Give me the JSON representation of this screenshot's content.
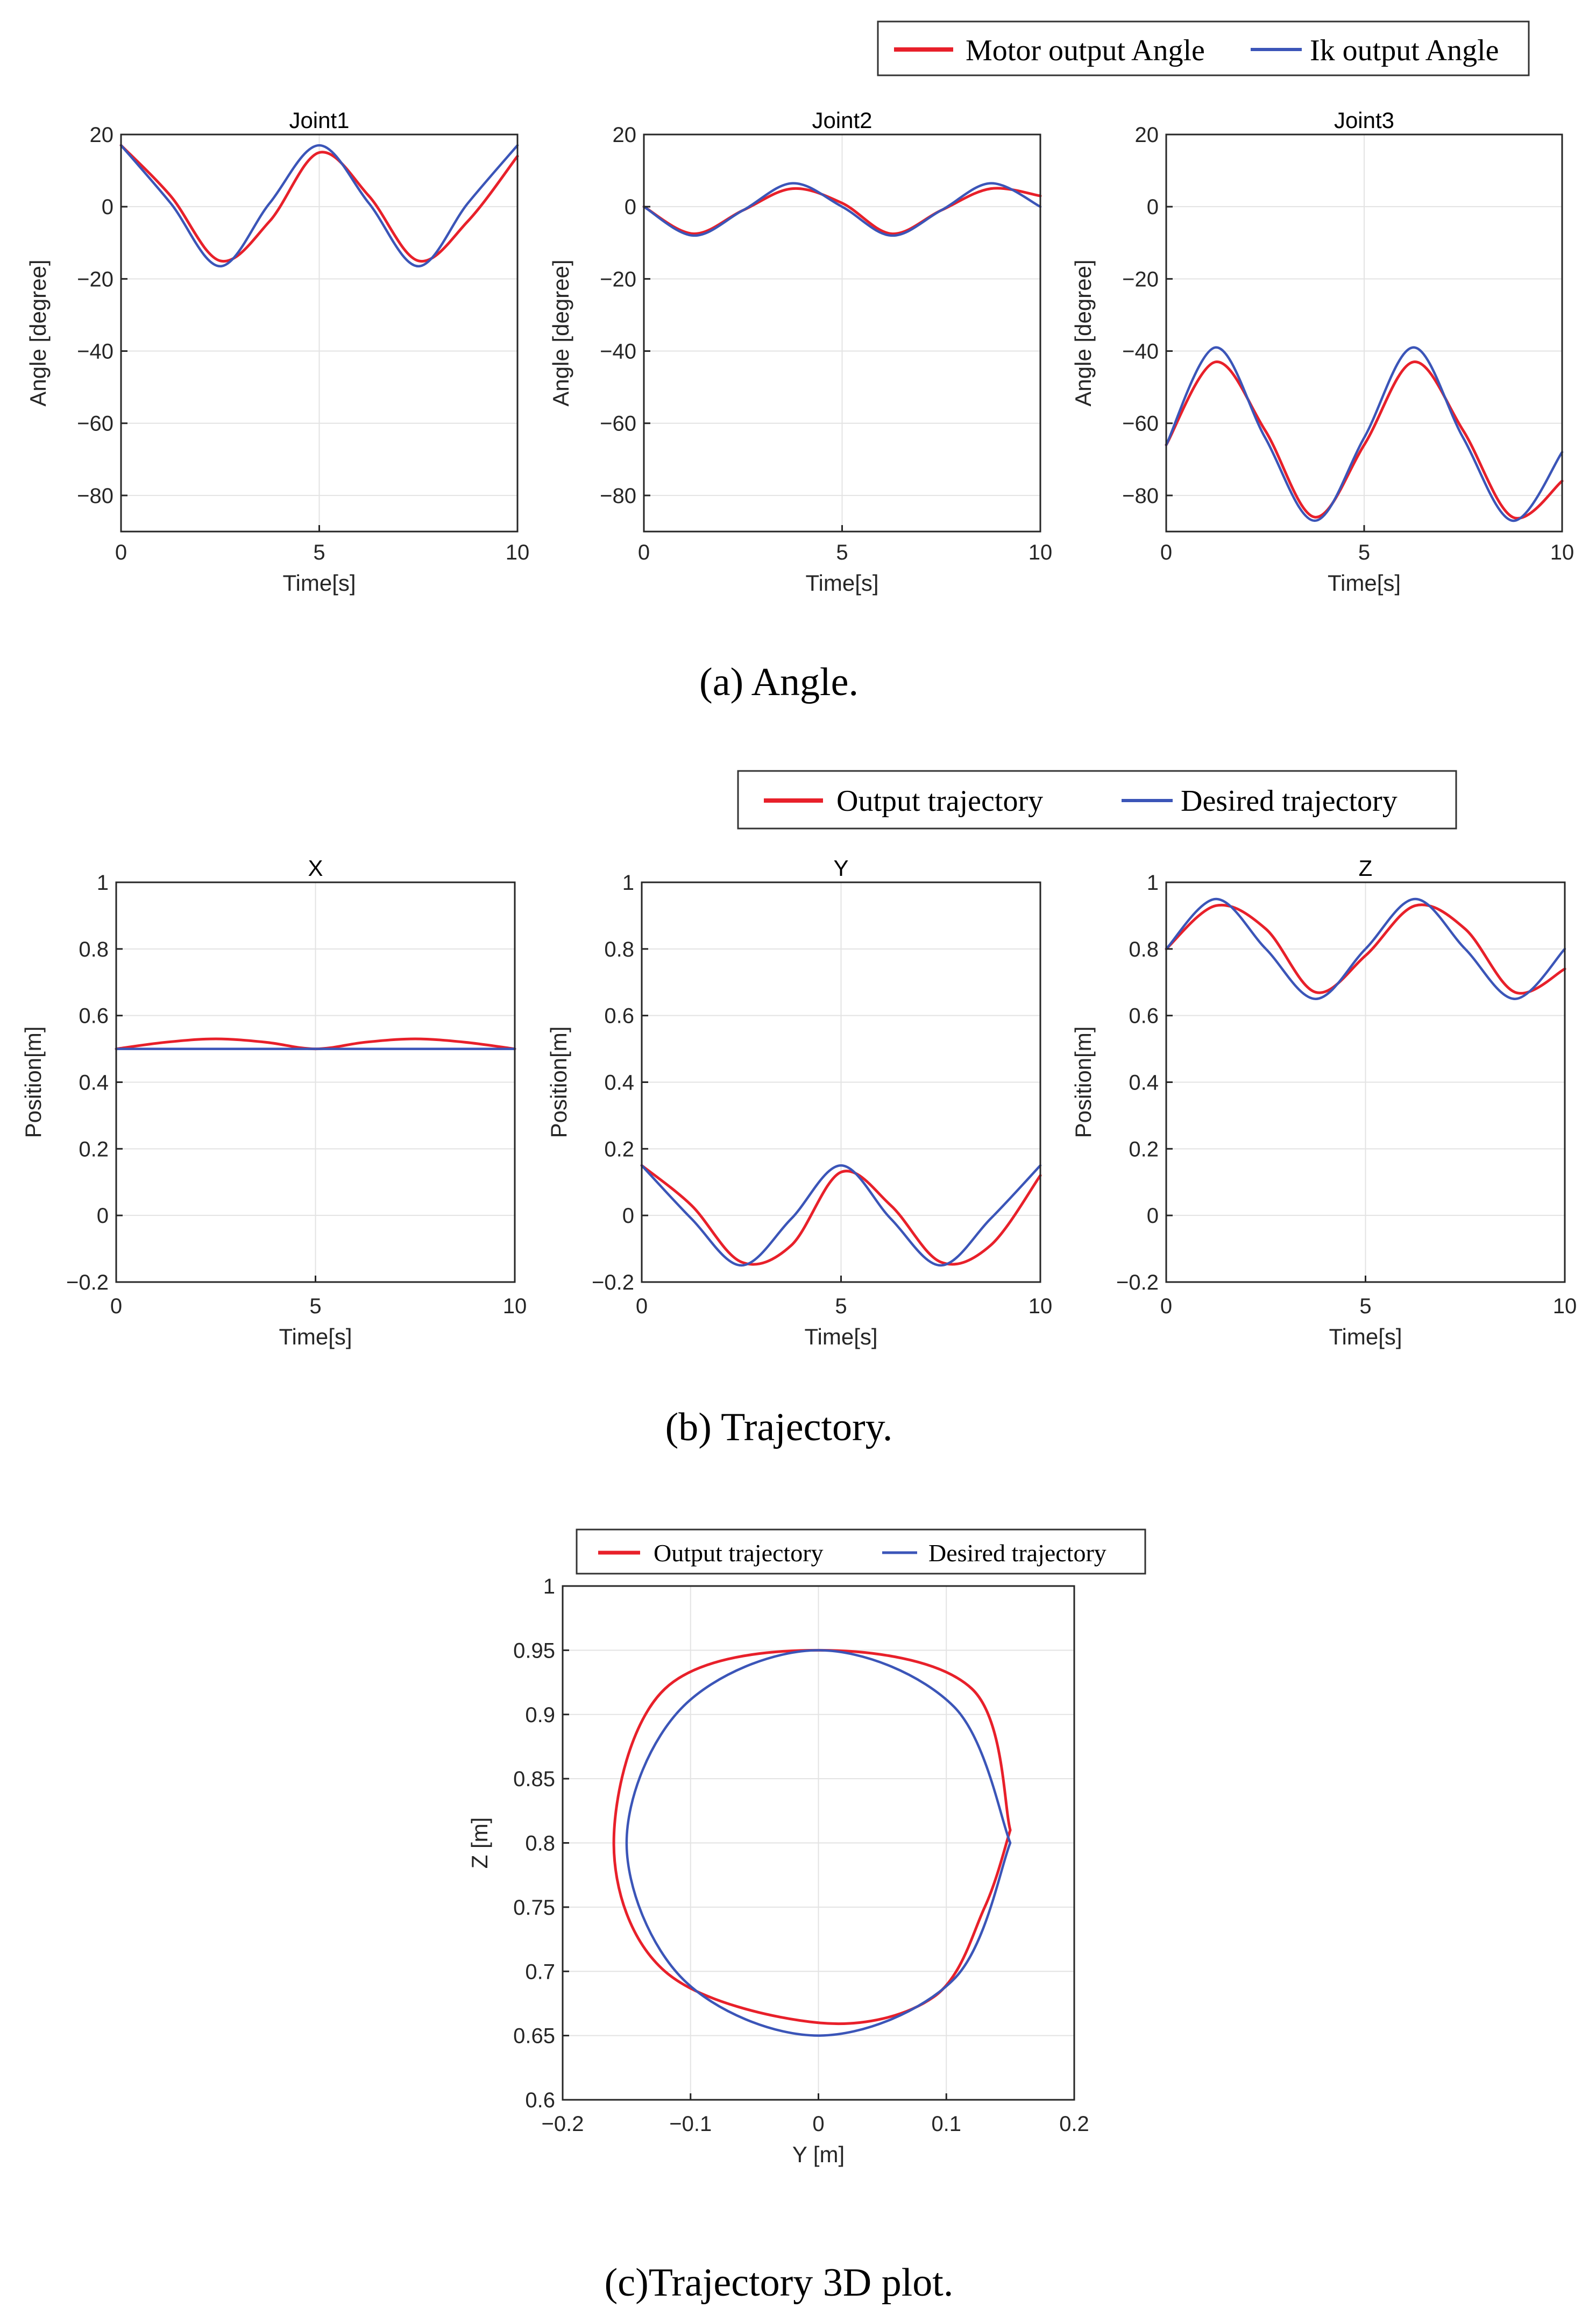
{
  "colors": {
    "output": "#e8202a",
    "desired": "#3b55b8",
    "grid": "#e3e3e3",
    "axis": "#262626"
  },
  "captions": {
    "a": "(a) Angle.",
    "b": "(b) Trajectory.",
    "c": "(c)Trajectory 3D plot."
  },
  "legends": {
    "a": {
      "red": "Motor output Angle",
      "blue": "Ik output Angle"
    },
    "b": {
      "red": "Output trajectory",
      "blue": "Desired trajectory"
    },
    "c": {
      "red": "Output trajectory",
      "blue": "Desired trajectory"
    }
  },
  "chart_data": [
    {
      "type": "line",
      "title": "Joint1",
      "xlabel": "Time[s]",
      "ylabel": "Angle [degree]",
      "xlim": [
        0,
        10
      ],
      "ylim": [
        -90,
        20
      ],
      "xticks": [
        0,
        5,
        10
      ],
      "yticks": [
        20,
        0,
        -20,
        -40,
        -60,
        -80
      ],
      "grid": true,
      "x": [
        0,
        1.25,
        2.5,
        3.75,
        5,
        6.25,
        7.5,
        8.75,
        10
      ],
      "series": [
        {
          "name": "Motor output Angle",
          "values": [
            17,
            3,
            -15,
            -4,
            15,
            3,
            -15,
            -4,
            14
          ]
        },
        {
          "name": "Ik output Angle",
          "values": [
            17,
            1,
            -16.5,
            1,
            17,
            1,
            -16.5,
            1,
            17
          ]
        }
      ]
    },
    {
      "type": "line",
      "title": "Joint2",
      "xlabel": "Time[s]",
      "ylabel": "Angle [degree]",
      "xlim": [
        0,
        10
      ],
      "ylim": [
        -90,
        20
      ],
      "xticks": [
        0,
        5,
        10
      ],
      "yticks": [
        20,
        0,
        -20,
        -40,
        -60,
        -80
      ],
      "grid": true,
      "x": [
        0,
        1.25,
        2.5,
        3.75,
        5,
        6.25,
        7.5,
        8.75,
        10
      ],
      "series": [
        {
          "name": "Motor output Angle",
          "values": [
            0,
            -7.5,
            -1,
            5,
            1,
            -7.5,
            -1,
            5,
            3
          ]
        },
        {
          "name": "Ik output Angle",
          "values": [
            0,
            -8,
            -1,
            6.5,
            0,
            -8,
            -1,
            6.5,
            0
          ]
        }
      ]
    },
    {
      "type": "line",
      "title": "Joint3",
      "xlabel": "Time[s]",
      "ylabel": "Angle [degree]",
      "xlim": [
        0,
        10
      ],
      "ylim": [
        -90,
        20
      ],
      "xticks": [
        0,
        5,
        10
      ],
      "yticks": [
        20,
        0,
        -20,
        -40,
        -60,
        -80
      ],
      "grid": true,
      "x": [
        0,
        1.25,
        2.5,
        3.75,
        5,
        6.25,
        7.5,
        8.75,
        10
      ],
      "series": [
        {
          "name": "Motor output Angle",
          "values": [
            -66,
            -43,
            -62,
            -86,
            -66,
            -43,
            -62,
            -86,
            -76
          ]
        },
        {
          "name": "Ik output Angle",
          "values": [
            -66,
            -39,
            -64,
            -87,
            -64,
            -39,
            -64,
            -87,
            -68
          ]
        }
      ]
    },
    {
      "type": "line",
      "title": "X",
      "xlabel": "Time[s]",
      "ylabel": "Position[m]",
      "xlim": [
        0,
        10
      ],
      "ylim": [
        -0.2,
        1
      ],
      "xticks": [
        0,
        5,
        10
      ],
      "yticks": [
        1,
        0.8,
        0.6,
        0.4,
        0.2,
        0,
        -0.2
      ],
      "grid": true,
      "x": [
        0,
        1.25,
        2.5,
        3.75,
        5,
        6.25,
        7.5,
        8.75,
        10
      ],
      "series": [
        {
          "name": "Output trajectory",
          "values": [
            0.5,
            0.52,
            0.53,
            0.52,
            0.5,
            0.52,
            0.53,
            0.52,
            0.5
          ]
        },
        {
          "name": "Desired trajectory",
          "values": [
            0.5,
            0.5,
            0.5,
            0.5,
            0.5,
            0.5,
            0.5,
            0.5,
            0.5
          ]
        }
      ]
    },
    {
      "type": "line",
      "title": "Y",
      "xlabel": "Time[s]",
      "ylabel": "Position[m]",
      "xlim": [
        0,
        10
      ],
      "ylim": [
        -0.2,
        1
      ],
      "xticks": [
        0,
        5,
        10
      ],
      "yticks": [
        1,
        0.8,
        0.6,
        0.4,
        0.2,
        0,
        -0.2
      ],
      "grid": true,
      "x": [
        0,
        1.25,
        2.5,
        3.75,
        5,
        6.25,
        7.5,
        8.75,
        10
      ],
      "series": [
        {
          "name": "Output trajectory",
          "values": [
            0.15,
            0.03,
            -0.14,
            -0.09,
            0.13,
            0.03,
            -0.14,
            -0.09,
            0.12
          ]
        },
        {
          "name": "Desired trajectory",
          "values": [
            0.15,
            -0.01,
            -0.15,
            -0.01,
            0.15,
            -0.01,
            -0.15,
            -0.01,
            0.15
          ]
        }
      ]
    },
    {
      "type": "line",
      "title": "Z",
      "xlabel": "Time[s]",
      "ylabel": "Position[m]",
      "xlim": [
        0,
        10
      ],
      "ylim": [
        -0.2,
        1
      ],
      "xticks": [
        0,
        5,
        10
      ],
      "yticks": [
        1,
        0.8,
        0.6,
        0.4,
        0.2,
        0,
        -0.2
      ],
      "grid": true,
      "x": [
        0,
        1.25,
        2.5,
        3.75,
        5,
        6.25,
        7.5,
        8.75,
        10
      ],
      "series": [
        {
          "name": "Output trajectory",
          "values": [
            0.8,
            0.93,
            0.86,
            0.67,
            0.78,
            0.93,
            0.86,
            0.67,
            0.74
          ]
        },
        {
          "name": "Desired trajectory",
          "values": [
            0.8,
            0.95,
            0.8,
            0.65,
            0.8,
            0.95,
            0.8,
            0.65,
            0.8
          ]
        }
      ]
    },
    {
      "type": "line",
      "title": "",
      "xlabel": "Y [m]",
      "ylabel": "Z [m]",
      "xlim": [
        -0.2,
        0.2
      ],
      "ylim": [
        0.6,
        1
      ],
      "xticks": [
        -0.2,
        -0.1,
        0,
        0.1,
        0.2
      ],
      "yticks": [
        1,
        0.95,
        0.9,
        0.85,
        0.8,
        0.75,
        0.7,
        0.65,
        0.6
      ],
      "grid": true,
      "series": [
        {
          "name": "Output trajectory",
          "x": [
            0.15,
            0.12,
            0.0,
            -0.12,
            -0.16,
            -0.12,
            0.0,
            0.09,
            0.13,
            0.15
          ],
          "y": [
            0.81,
            0.92,
            0.95,
            0.92,
            0.8,
            0.7,
            0.66,
            0.68,
            0.75,
            0.81
          ]
        },
        {
          "name": "Desired trajectory",
          "x": [
            0.15,
            0.106,
            0.0,
            -0.106,
            -0.15,
            -0.106,
            0.0,
            0.106,
            0.15
          ],
          "y": [
            0.8,
            0.906,
            0.95,
            0.906,
            0.8,
            0.694,
            0.65,
            0.694,
            0.8
          ]
        }
      ]
    }
  ]
}
